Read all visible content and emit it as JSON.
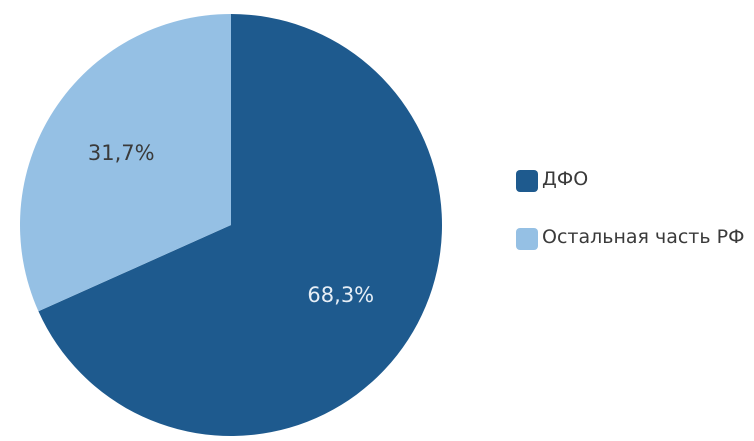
{
  "chart_data": {
    "type": "pie",
    "title": "",
    "slices": [
      {
        "label": "ДФО",
        "value": 68.3,
        "display": "68,3%",
        "color": "#1e5a8e"
      },
      {
        "label": "Остальная часть РФ",
        "value": 31.7,
        "display": "31,7%",
        "color": "#95c0e4"
      }
    ],
    "start_angle_deg": 0,
    "direction": "clockwise",
    "legend_position": "right"
  },
  "label_colors": {
    "dark_slice_label": "#e6eef6",
    "light_slice_label": "#3a3a3a"
  }
}
